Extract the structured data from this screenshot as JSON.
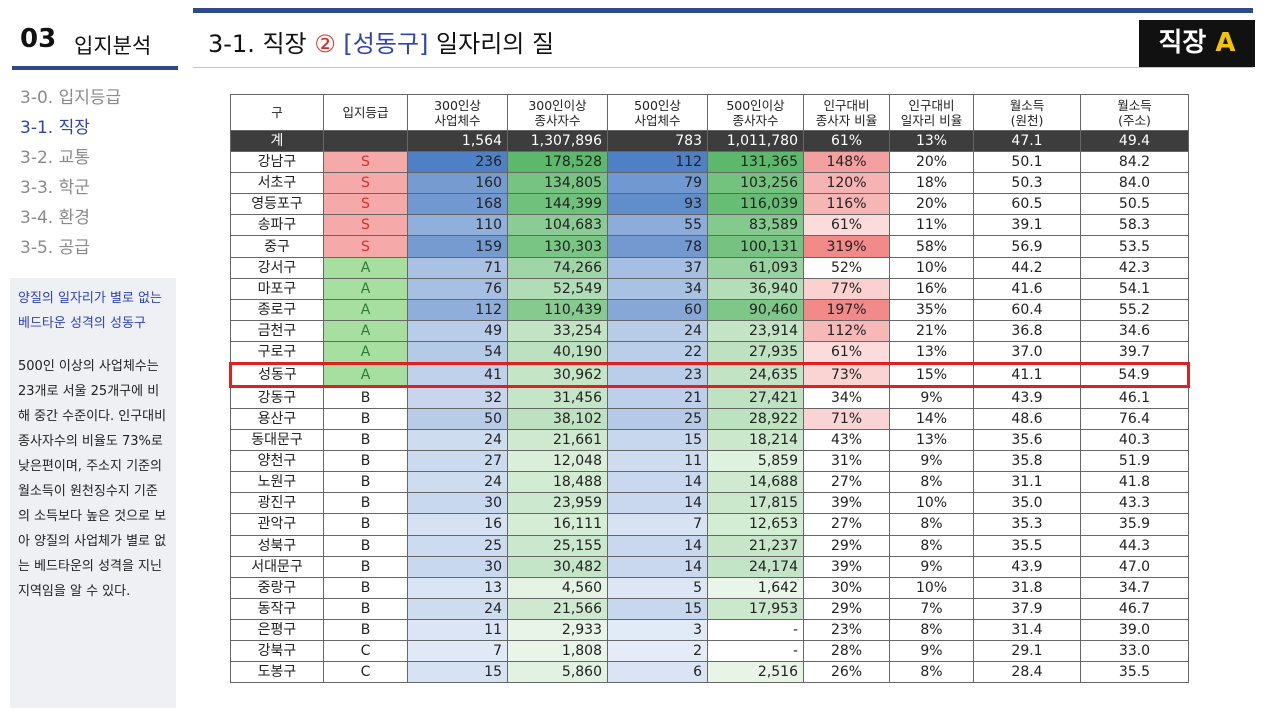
{
  "sidebar": {
    "section_number": "03",
    "section_title": "입지분석",
    "nav_items": [
      "3-0. 입지등급",
      "3-1. 직장",
      "3-2. 교통",
      "3-3. 학군",
      "3-4. 환경",
      "3-5. 공급"
    ],
    "active_index": 1,
    "description_highlight": "양질의 일자리가 별로 없는 베드타운 성격의 성동구",
    "description_body": "500인 이상의 사업체수는 23개로 서울 25개구에 비해 중간 수준이다. 인구대비 종사자수의 비율도 73%로 낮은편이며, 주소지 기준의 월소득이 원천징수지 기준의 소득보다 높은 것으로 보아 양질의 사업체가 별로 없는 베드타운의 성격을 지닌 지역임을 알 수 있다."
  },
  "header": {
    "title_prefix": "3-1. 직장",
    "title_circled": "②",
    "title_district": "[성동구]",
    "title_suffix": "일자리의 질",
    "badge_label": "직장",
    "badge_grade": "A"
  },
  "colors": {
    "accent_navy": "#2e4a8a",
    "accent_blue": "#2f43b5",
    "highlight_red": "#e02020",
    "grade_S": "#d83030",
    "grade_A_bg": "#a7dfa0",
    "badge_yellow": "#f5c400"
  },
  "table": {
    "headers": [
      [
        "구"
      ],
      [
        "입지등급"
      ],
      [
        "300인상",
        "사업체수"
      ],
      [
        "300인이상",
        "종사자수"
      ],
      [
        "500인상",
        "사업체수"
      ],
      [
        "500인이상",
        "종사자수"
      ],
      [
        "인구대비",
        "종사자 비율"
      ],
      [
        "인구대비",
        "일자리 비율"
      ],
      [
        "월소득",
        "(원천)"
      ],
      [
        "월소득",
        "(주소)"
      ]
    ],
    "total": [
      "계",
      "",
      "1,564",
      "1,307,896",
      "783",
      "1,011,780",
      "61%",
      "13%",
      "47.1",
      "49.4"
    ],
    "highlight_district": "성동구",
    "rows": [
      [
        "강남구",
        "S",
        "236",
        "178,528",
        "112",
        "131,365",
        "148%",
        "20%",
        "50.1",
        "84.2"
      ],
      [
        "서초구",
        "S",
        "160",
        "134,805",
        "79",
        "103,256",
        "120%",
        "18%",
        "50.3",
        "84.0"
      ],
      [
        "영등포구",
        "S",
        "168",
        "144,399",
        "93",
        "116,039",
        "116%",
        "20%",
        "60.5",
        "50.5"
      ],
      [
        "송파구",
        "S",
        "110",
        "104,683",
        "55",
        "83,589",
        "61%",
        "11%",
        "39.1",
        "58.3"
      ],
      [
        "중구",
        "S",
        "159",
        "130,303",
        "78",
        "100,131",
        "319%",
        "58%",
        "56.9",
        "53.5"
      ],
      [
        "강서구",
        "A",
        "71",
        "74,266",
        "37",
        "61,093",
        "52%",
        "10%",
        "44.2",
        "42.3"
      ],
      [
        "마포구",
        "A",
        "76",
        "52,549",
        "34",
        "36,940",
        "77%",
        "16%",
        "41.6",
        "54.1"
      ],
      [
        "종로구",
        "A",
        "112",
        "110,439",
        "60",
        "90,460",
        "197%",
        "35%",
        "60.4",
        "55.2"
      ],
      [
        "금천구",
        "A",
        "49",
        "33,254",
        "24",
        "23,914",
        "112%",
        "21%",
        "36.8",
        "34.6"
      ],
      [
        "구로구",
        "A",
        "54",
        "40,190",
        "22",
        "27,935",
        "61%",
        "13%",
        "37.0",
        "39.7"
      ],
      [
        "성동구",
        "A",
        "41",
        "30,962",
        "23",
        "24,635",
        "73%",
        "15%",
        "41.1",
        "54.9"
      ],
      [
        "강동구",
        "B",
        "32",
        "31,456",
        "21",
        "27,421",
        "34%",
        "9%",
        "43.9",
        "46.1"
      ],
      [
        "용산구",
        "B",
        "50",
        "38,102",
        "25",
        "28,922",
        "71%",
        "14%",
        "48.6",
        "76.4"
      ],
      [
        "동대문구",
        "B",
        "24",
        "21,661",
        "15",
        "18,214",
        "43%",
        "13%",
        "35.6",
        "40.3"
      ],
      [
        "양천구",
        "B",
        "27",
        "12,048",
        "11",
        "5,859",
        "31%",
        "9%",
        "35.8",
        "51.9"
      ],
      [
        "노원구",
        "B",
        "24",
        "18,488",
        "14",
        "14,688",
        "27%",
        "8%",
        "31.1",
        "41.8"
      ],
      [
        "광진구",
        "B",
        "30",
        "23,959",
        "14",
        "17,815",
        "39%",
        "10%",
        "35.0",
        "43.3"
      ],
      [
        "관악구",
        "B",
        "16",
        "16,111",
        "7",
        "12,653",
        "27%",
        "8%",
        "35.3",
        "35.9"
      ],
      [
        "성북구",
        "B",
        "25",
        "25,155",
        "14",
        "21,237",
        "29%",
        "8%",
        "35.5",
        "44.3"
      ],
      [
        "서대문구",
        "B",
        "30",
        "30,482",
        "14",
        "24,174",
        "39%",
        "9%",
        "43.9",
        "47.0"
      ],
      [
        "중랑구",
        "B",
        "13",
        "4,560",
        "5",
        "1,642",
        "30%",
        "10%",
        "31.8",
        "34.7"
      ],
      [
        "동작구",
        "B",
        "24",
        "21,566",
        "15",
        "17,953",
        "29%",
        "7%",
        "37.9",
        "46.7"
      ],
      [
        "은평구",
        "B",
        "11",
        "2,933",
        "3",
        "-",
        "23%",
        "8%",
        "31.4",
        "39.0"
      ],
      [
        "강북구",
        "C",
        "7",
        "1,808",
        "2",
        "-",
        "28%",
        "9%",
        "29.1",
        "33.0"
      ],
      [
        "도봉구",
        "C",
        "15",
        "5,860",
        "6",
        "2,516",
        "26%",
        "8%",
        "28.4",
        "35.5"
      ]
    ]
  }
}
